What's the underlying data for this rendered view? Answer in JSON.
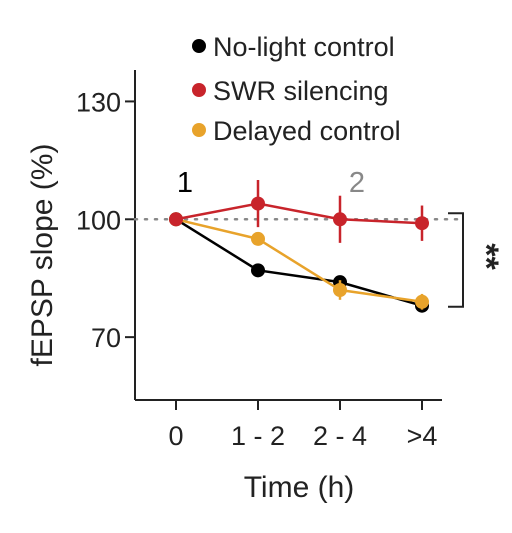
{
  "chart_data": {
    "type": "line",
    "xlabel": "Time (h)",
    "ylabel": "fEPSP slope (%)",
    "categories": [
      "0",
      "1 - 2",
      "2 - 4",
      ">4"
    ],
    "ylim": [
      54,
      138
    ],
    "yticks": [
      70,
      100,
      130
    ],
    "reference_line": 100,
    "grid": false,
    "legend_position": "top-right",
    "series": [
      {
        "name": "No-light control",
        "color": "#000000",
        "values": [
          100,
          87,
          84,
          78
        ],
        "errors": [
          1,
          1.5,
          1.5,
          1.5
        ]
      },
      {
        "name": "SWR silencing",
        "color": "#c8242b",
        "values": [
          100,
          104,
          100,
          99
        ],
        "errors": [
          1,
          6,
          6,
          4.5
        ]
      },
      {
        "name": "Delayed control",
        "color": "#e8a32b",
        "values": [
          100,
          95,
          82,
          79
        ],
        "errors": [
          1,
          1.5,
          2.5,
          2
        ]
      }
    ],
    "annotations": [
      {
        "text": "1",
        "x": "0",
        "color": "#000000"
      },
      {
        "text": "2",
        "x": "2 - 4",
        "color": "#888888"
      }
    ],
    "significance": "**"
  }
}
